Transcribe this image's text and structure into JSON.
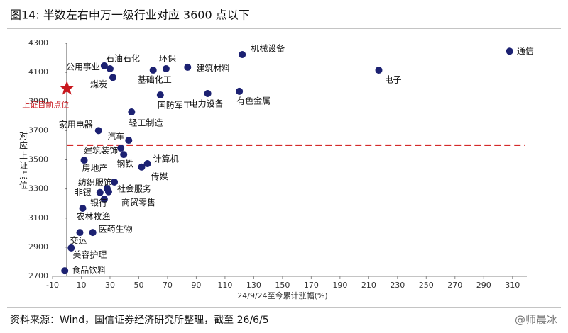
{
  "chart_data": {
    "type": "scatter",
    "title": "图14: 半数左右申万一级行业对应 3600 点以下",
    "source": "资料来源：Wind，国信证券经济研究所整理，截至 26/6/5",
    "watermark": "@师晨冰",
    "x_label": "24/9/24至今累计涨幅(%)",
    "y_label": "对应上证点位",
    "color": "#1c2172",
    "xlim": [
      -10,
      320
    ],
    "xticks": [
      -10,
      10,
      30,
      50,
      70,
      90,
      110,
      130,
      150,
      170,
      190,
      210,
      230,
      250,
      270,
      290,
      310
    ],
    "ylim": [
      2700,
      4300
    ],
    "yticks": [
      2700,
      2900,
      3100,
      3300,
      3500,
      3700,
      3900,
      4100,
      4300
    ],
    "reference_line": {
      "y": 3600,
      "color": "#d42a2a"
    },
    "reference_point": {
      "label": "上证目前点位",
      "x": 0,
      "y": 3990,
      "color": "#c8171e"
    },
    "points": [
      {
        "label": "通信",
        "x": 308,
        "y": 4245
      },
      {
        "label": "机械设备",
        "x": 122,
        "y": 4222
      },
      {
        "label": "电子",
        "x": 217,
        "y": 4115
      },
      {
        "label": "建筑材料",
        "x": 84,
        "y": 4135
      },
      {
        "label": "环保",
        "x": 69,
        "y": 4125
      },
      {
        "label": "基础化工",
        "x": 60,
        "y": 4115
      },
      {
        "label": "石油石化",
        "x": 30,
        "y": 4125
      },
      {
        "label": "公用事业",
        "x": 26,
        "y": 4145
      },
      {
        "label": "煤炭",
        "x": 32,
        "y": 4065
      },
      {
        "label": "国防军工",
        "x": 65,
        "y": 3945
      },
      {
        "label": "电力设备",
        "x": 98,
        "y": 3955
      },
      {
        "label": "有色金属",
        "x": 120,
        "y": 3970
      },
      {
        "label": "轻工制造",
        "x": 45,
        "y": 3828
      },
      {
        "label": "家用电器",
        "x": 22,
        "y": 3700
      },
      {
        "label": "汽车",
        "x": 43,
        "y": 3633
      },
      {
        "label": "建筑装饰",
        "x": 37.5,
        "y": 3580
      },
      {
        "label": "钢铁",
        "x": 39.5,
        "y": 3536
      },
      {
        "label": "计算机",
        "x": 56,
        "y": 3473
      },
      {
        "label": "传媒",
        "x": 52,
        "y": 3450
      },
      {
        "label": "房地产",
        "x": 12,
        "y": 3497
      },
      {
        "label": "社会服务",
        "x": 33,
        "y": 3347
      },
      {
        "label": "纺织服饰",
        "x": 28,
        "y": 3303
      },
      {
        "label": "非银",
        "x": 23,
        "y": 3275
      },
      {
        "label": "银行",
        "x": 26,
        "y": 3230
      },
      {
        "label": "商贸零售",
        "x": 29,
        "y": 3280
      },
      {
        "label": "农林牧渔",
        "x": 11,
        "y": 3167
      },
      {
        "label": "交运",
        "x": 9,
        "y": 3001
      },
      {
        "label": "医药生物",
        "x": 18,
        "y": 3001
      },
      {
        "label": "美容护理",
        "x": 3,
        "y": 2895
      },
      {
        "label": "食品饮料",
        "x": -1.5,
        "y": 2738
      }
    ]
  }
}
